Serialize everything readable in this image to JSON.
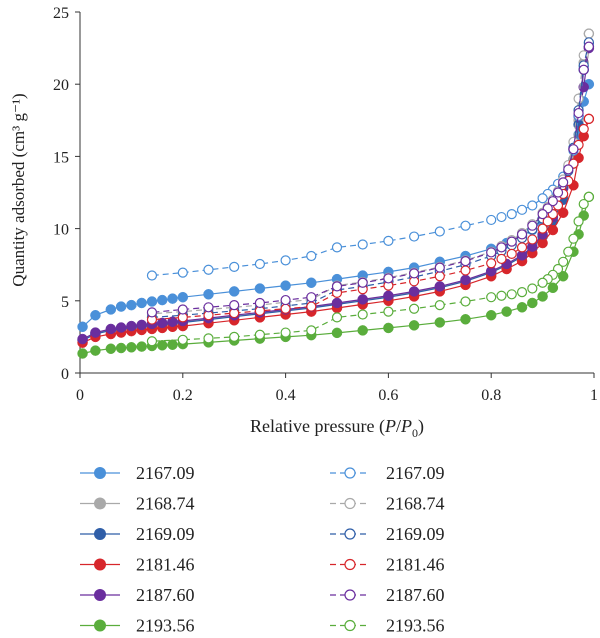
{
  "chart_data": {
    "type": "line",
    "xlabel": "Relative pressure (P/P0)",
    "ylabel": "Quantity adsorbed (cm³ g⁻¹)",
    "xlim": [
      0,
      1
    ],
    "ylim": [
      0,
      25
    ],
    "xticks": [
      "0",
      "0.2",
      "0.4",
      "0.6",
      "0.8",
      "1"
    ],
    "yticks": [
      "0",
      "5",
      "10",
      "15",
      "20",
      "25"
    ],
    "grid": false,
    "legend_position": "bottom, two columns",
    "series": [
      {
        "name": "2167.09",
        "kind": "adsorption",
        "marker": "filled",
        "dash": "solid",
        "color": "#4a90d9",
        "x": [
          0.005,
          0.03,
          0.06,
          0.08,
          0.1,
          0.12,
          0.14,
          0.16,
          0.18,
          0.2,
          0.25,
          0.3,
          0.35,
          0.4,
          0.45,
          0.5,
          0.55,
          0.6,
          0.65,
          0.7,
          0.75,
          0.8,
          0.83,
          0.86,
          0.88,
          0.9,
          0.92,
          0.94,
          0.96,
          0.97,
          0.98,
          0.99
        ],
        "y": [
          3.2,
          4.0,
          4.4,
          4.6,
          4.7,
          4.85,
          4.95,
          5.05,
          5.15,
          5.25,
          5.45,
          5.65,
          5.85,
          6.05,
          6.25,
          6.5,
          6.75,
          7.0,
          7.3,
          7.7,
          8.1,
          8.6,
          9.0,
          9.5,
          9.9,
          10.5,
          11.4,
          12.8,
          14.8,
          16.5,
          18.8,
          20.0
        ]
      },
      {
        "name": "2168.74",
        "kind": "adsorption",
        "marker": "filled",
        "dash": "solid",
        "color": "#a9a9a9",
        "x": [
          0.005,
          0.03,
          0.06,
          0.08,
          0.1,
          0.12,
          0.14,
          0.16,
          0.18,
          0.2,
          0.25,
          0.3,
          0.35,
          0.4,
          0.45,
          0.5,
          0.55,
          0.6,
          0.65,
          0.7,
          0.75,
          0.8,
          0.83,
          0.86,
          0.88,
          0.9,
          0.92,
          0.94,
          0.96,
          0.97,
          0.98,
          0.99
        ],
        "y": [
          2.3,
          2.75,
          3.0,
          3.1,
          3.2,
          3.28,
          3.35,
          3.42,
          3.5,
          3.55,
          3.75,
          3.95,
          4.15,
          4.35,
          4.55,
          4.8,
          5.05,
          5.3,
          5.6,
          5.95,
          6.4,
          7.0,
          7.5,
          8.1,
          8.7,
          9.5,
          10.6,
          12.2,
          14.8,
          17.5,
          21.5,
          23.5
        ]
      },
      {
        "name": "2169.09",
        "kind": "adsorption",
        "marker": "filled",
        "dash": "solid",
        "color": "#2f5ea8",
        "x": [
          0.005,
          0.03,
          0.06,
          0.08,
          0.1,
          0.12,
          0.14,
          0.16,
          0.18,
          0.2,
          0.25,
          0.3,
          0.35,
          0.4,
          0.45,
          0.5,
          0.55,
          0.6,
          0.65,
          0.7,
          0.75,
          0.8,
          0.83,
          0.86,
          0.88,
          0.9,
          0.92,
          0.94,
          0.96,
          0.97,
          0.98,
          0.99
        ],
        "y": [
          2.25,
          2.7,
          2.95,
          3.05,
          3.15,
          3.23,
          3.3,
          3.38,
          3.45,
          3.5,
          3.7,
          3.9,
          4.1,
          4.3,
          4.5,
          4.75,
          5.0,
          5.25,
          5.55,
          5.9,
          6.35,
          6.95,
          7.45,
          8.05,
          8.65,
          9.45,
          10.5,
          12.0,
          14.5,
          17.2,
          21.0,
          22.6
        ]
      },
      {
        "name": "2181.46",
        "kind": "adsorption",
        "marker": "filled",
        "dash": "solid",
        "color": "#d7262b",
        "x": [
          0.005,
          0.03,
          0.06,
          0.08,
          0.1,
          0.12,
          0.14,
          0.16,
          0.18,
          0.2,
          0.25,
          0.3,
          0.35,
          0.4,
          0.45,
          0.5,
          0.55,
          0.6,
          0.65,
          0.7,
          0.75,
          0.8,
          0.83,
          0.86,
          0.88,
          0.9,
          0.92,
          0.94,
          0.96,
          0.97,
          0.98,
          0.99
        ],
        "y": [
          2.1,
          2.5,
          2.7,
          2.8,
          2.9,
          2.98,
          3.05,
          3.12,
          3.2,
          3.25,
          3.45,
          3.65,
          3.85,
          4.05,
          4.25,
          4.5,
          4.75,
          5.0,
          5.3,
          5.65,
          6.1,
          6.7,
          7.2,
          7.75,
          8.3,
          9.0,
          9.9,
          11.1,
          13.0,
          14.9,
          16.4,
          17.6
        ]
      },
      {
        "name": "2187.60",
        "kind": "adsorption",
        "marker": "filled",
        "dash": "solid",
        "color": "#6a2e9e",
        "x": [
          0.005,
          0.03,
          0.06,
          0.08,
          0.1,
          0.12,
          0.14,
          0.16,
          0.18,
          0.2,
          0.25,
          0.3,
          0.35,
          0.4,
          0.45,
          0.5,
          0.55,
          0.6,
          0.65,
          0.7,
          0.75,
          0.8,
          0.83,
          0.86,
          0.88,
          0.9,
          0.92,
          0.94,
          0.96,
          0.97,
          0.98,
          0.99
        ],
        "y": [
          2.35,
          2.8,
          3.05,
          3.15,
          3.25,
          3.33,
          3.4,
          3.47,
          3.55,
          3.6,
          3.8,
          4.0,
          4.2,
          4.4,
          4.6,
          4.85,
          5.1,
          5.35,
          5.65,
          6.0,
          6.45,
          7.05,
          7.55,
          8.15,
          8.75,
          9.6,
          10.8,
          12.8,
          15.5,
          17.8,
          19.8,
          22.5
        ]
      },
      {
        "name": "2193.56",
        "kind": "adsorption",
        "marker": "filled",
        "dash": "solid",
        "color": "#5aad3c",
        "x": [
          0.005,
          0.03,
          0.06,
          0.08,
          0.1,
          0.12,
          0.14,
          0.16,
          0.18,
          0.2,
          0.25,
          0.3,
          0.35,
          0.4,
          0.45,
          0.5,
          0.55,
          0.6,
          0.65,
          0.7,
          0.75,
          0.8,
          0.83,
          0.86,
          0.88,
          0.9,
          0.92,
          0.94,
          0.96,
          0.97,
          0.98,
          0.99
        ],
        "y": [
          1.35,
          1.55,
          1.68,
          1.73,
          1.78,
          1.83,
          1.87,
          1.92,
          1.96,
          2.0,
          2.12,
          2.25,
          2.38,
          2.5,
          2.62,
          2.78,
          2.95,
          3.12,
          3.3,
          3.5,
          3.72,
          4.0,
          4.25,
          4.55,
          4.85,
          5.3,
          5.9,
          6.7,
          8.4,
          9.6,
          10.9,
          12.2
        ]
      },
      {
        "name": "2167.09",
        "kind": "desorption",
        "marker": "open",
        "dash": "dashed",
        "color": "#4a90d9",
        "x": [
          0.99,
          0.98,
          0.97,
          0.96,
          0.95,
          0.94,
          0.93,
          0.92,
          0.91,
          0.9,
          0.88,
          0.86,
          0.84,
          0.82,
          0.8,
          0.75,
          0.7,
          0.65,
          0.6,
          0.55,
          0.5,
          0.45,
          0.4,
          0.35,
          0.3,
          0.25,
          0.2,
          0.14
        ],
        "y": [
          22.8,
          21.2,
          17.8,
          15.4,
          14.3,
          13.6,
          13.1,
          12.7,
          12.4,
          12.1,
          11.6,
          11.3,
          11.0,
          10.8,
          10.6,
          10.2,
          9.8,
          9.45,
          9.15,
          8.9,
          8.7,
          8.1,
          7.8,
          7.55,
          7.35,
          7.15,
          6.95,
          6.75
        ]
      },
      {
        "name": "2168.74",
        "kind": "desorption",
        "marker": "open",
        "dash": "dashed",
        "color": "#a9a9a9",
        "x": [
          0.99,
          0.98,
          0.97,
          0.96,
          0.95,
          0.94,
          0.93,
          0.92,
          0.91,
          0.9,
          0.88,
          0.86,
          0.84,
          0.82,
          0.8,
          0.75,
          0.7,
          0.65,
          0.6,
          0.55,
          0.5,
          0.45,
          0.4,
          0.35,
          0.3,
          0.25,
          0.2,
          0.14
        ],
        "y": [
          23.5,
          22.0,
          19.0,
          16.0,
          14.4,
          13.4,
          12.6,
          12.0,
          11.5,
          11.1,
          10.3,
          9.7,
          9.2,
          8.8,
          8.4,
          7.8,
          7.35,
          6.95,
          6.6,
          6.3,
          6.05,
          5.1,
          4.9,
          4.7,
          4.55,
          4.4,
          4.25,
          4.1
        ]
      },
      {
        "name": "2169.09",
        "kind": "desorption",
        "marker": "open",
        "dash": "dashed",
        "color": "#2f5ea8",
        "x": [
          0.99,
          0.98,
          0.97,
          0.96,
          0.95,
          0.94,
          0.93,
          0.92,
          0.91,
          0.9,
          0.88,
          0.86,
          0.84,
          0.82,
          0.8,
          0.75,
          0.7,
          0.65,
          0.6,
          0.55,
          0.5,
          0.45,
          0.4,
          0.35,
          0.3,
          0.25,
          0.2,
          0.14
        ],
        "y": [
          22.9,
          21.3,
          18.2,
          15.6,
          14.0,
          13.0,
          12.2,
          11.6,
          11.1,
          10.7,
          9.95,
          9.35,
          8.85,
          8.45,
          8.1,
          7.5,
          7.05,
          6.65,
          6.3,
          6.0,
          5.75,
          4.85,
          4.65,
          4.45,
          4.3,
          4.15,
          4.0,
          3.85
        ]
      },
      {
        "name": "2181.46",
        "kind": "desorption",
        "marker": "open",
        "dash": "dashed",
        "color": "#d7262b",
        "x": [
          0.99,
          0.98,
          0.97,
          0.96,
          0.95,
          0.94,
          0.93,
          0.92,
          0.91,
          0.9,
          0.88,
          0.86,
          0.84,
          0.82,
          0.8,
          0.75,
          0.7,
          0.65,
          0.6,
          0.55,
          0.5,
          0.45,
          0.4,
          0.35,
          0.3,
          0.25,
          0.2,
          0.14
        ],
        "y": [
          17.6,
          16.9,
          15.8,
          14.5,
          13.3,
          12.4,
          11.6,
          11.0,
          10.5,
          10.0,
          9.25,
          8.7,
          8.25,
          7.9,
          7.6,
          7.1,
          6.7,
          6.35,
          6.05,
          5.8,
          5.55,
          4.6,
          4.45,
          4.3,
          4.15,
          4.0,
          3.85,
          3.7
        ]
      },
      {
        "name": "2187.60",
        "kind": "desorption",
        "marker": "open",
        "dash": "dashed",
        "color": "#6a2e9e",
        "x": [
          0.99,
          0.98,
          0.97,
          0.96,
          0.95,
          0.94,
          0.93,
          0.92,
          0.91,
          0.9,
          0.88,
          0.86,
          0.84,
          0.82,
          0.8,
          0.75,
          0.7,
          0.65,
          0.6,
          0.55,
          0.5,
          0.45,
          0.4,
          0.35,
          0.3,
          0.25,
          0.2,
          0.14
        ],
        "y": [
          22.6,
          21.0,
          18.0,
          15.5,
          14.1,
          13.2,
          12.5,
          11.9,
          11.4,
          11.0,
          10.2,
          9.6,
          9.1,
          8.7,
          8.35,
          7.75,
          7.3,
          6.9,
          6.55,
          6.25,
          6.0,
          5.25,
          5.05,
          4.85,
          4.7,
          4.55,
          4.4,
          4.2
        ]
      },
      {
        "name": "2193.56",
        "kind": "desorption",
        "marker": "open",
        "dash": "dashed",
        "color": "#5aad3c",
        "x": [
          0.99,
          0.98,
          0.97,
          0.96,
          0.95,
          0.94,
          0.93,
          0.92,
          0.91,
          0.9,
          0.88,
          0.86,
          0.84,
          0.82,
          0.8,
          0.75,
          0.7,
          0.65,
          0.6,
          0.55,
          0.5,
          0.45,
          0.4,
          0.35,
          0.3,
          0.25,
          0.2,
          0.14
        ],
        "y": [
          12.2,
          11.7,
          10.5,
          9.3,
          8.4,
          7.7,
          7.2,
          6.8,
          6.5,
          6.25,
          5.85,
          5.6,
          5.45,
          5.35,
          5.25,
          4.95,
          4.7,
          4.45,
          4.25,
          4.05,
          3.85,
          2.95,
          2.8,
          2.65,
          2.5,
          2.4,
          2.3,
          2.2
        ]
      }
    ]
  }
}
